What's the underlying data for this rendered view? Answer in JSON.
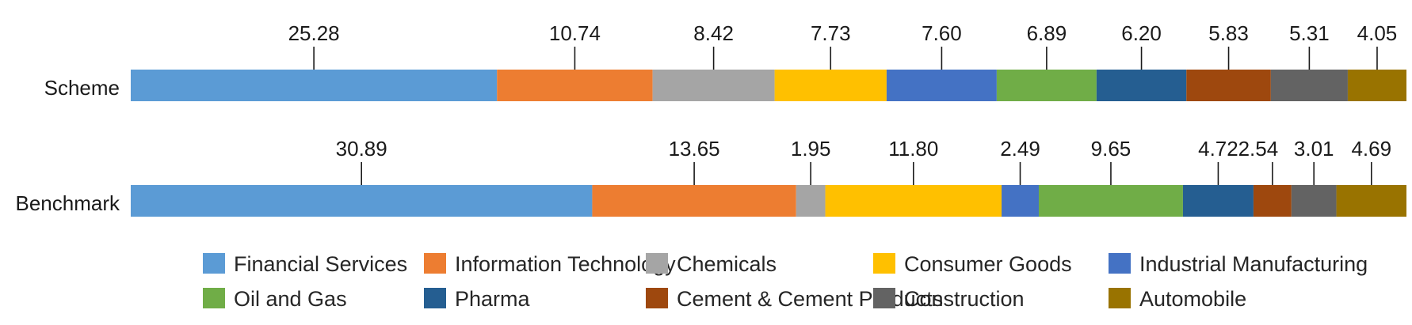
{
  "chart_data": {
    "type": "bar",
    "orientation": "horizontal",
    "stacked": true,
    "title": "",
    "xlabel": "",
    "ylabel": "",
    "grid": false,
    "legend": "bottom",
    "categories": [
      "Scheme",
      "Benchmark"
    ],
    "series": [
      {
        "name": "Financial Services",
        "color": "#5B9BD5",
        "values": [
          25.28,
          30.89
        ]
      },
      {
        "name": "Information Technology",
        "color": "#ED7D31",
        "values": [
          10.74,
          13.65
        ]
      },
      {
        "name": "Chemicals",
        "color": "#A5A5A5",
        "values": [
          8.42,
          1.95
        ]
      },
      {
        "name": "Consumer Goods",
        "color": "#FFC000",
        "values": [
          7.73,
          11.8
        ]
      },
      {
        "name": "Industrial Manufacturing",
        "color": "#4472C4",
        "values": [
          7.6,
          2.49
        ]
      },
      {
        "name": "Oil and Gas",
        "color": "#70AD47",
        "values": [
          6.89,
          9.65
        ]
      },
      {
        "name": "Pharma",
        "color": "#255E91",
        "values": [
          6.2,
          4.72
        ]
      },
      {
        "name": "Cement & Cement Products",
        "color": "#9E480E",
        "values": [
          5.83,
          2.54
        ]
      },
      {
        "name": "Construction",
        "color": "#636363",
        "values": [
          5.31,
          3.01
        ]
      },
      {
        "name": "Automobile",
        "color": "#997300",
        "values": [
          4.05,
          4.69
        ]
      }
    ],
    "data_labels": [
      [
        "25.28",
        "10.74",
        "8.42",
        "7.73",
        "7.60",
        "6.89",
        "6.20",
        "5.83",
        "5.31",
        "4.05"
      ],
      [
        "30.89",
        "13.65",
        "1.95",
        "11.80",
        "2.49",
        "9.65",
        "4.72",
        "2.54",
        "3.01",
        "4.69"
      ]
    ]
  }
}
